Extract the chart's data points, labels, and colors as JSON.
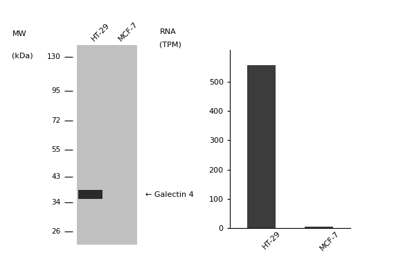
{
  "mw_labels": [
    "130",
    "95",
    "72",
    "55",
    "43",
    "34",
    "26"
  ],
  "mw_values": [
    130,
    95,
    72,
    55,
    43,
    34,
    26
  ],
  "cell_lines": [
    "HT-29",
    "MCF-7"
  ],
  "band_kda": 36.5,
  "band_annotation": "← Galectin 4",
  "gel_color": "#c0c0c0",
  "band_color": "#2a2a2a",
  "bar_values": [
    557,
    4
  ],
  "bar_color": "#3c3c3c",
  "ylabel_bar_line1": "RNA",
  "ylabel_bar_line2": "(TPM)",
  "yticks_bar": [
    0,
    100,
    200,
    300,
    400,
    500
  ],
  "ylim_bar": [
    0,
    610
  ],
  "background_color": "#ffffff",
  "mw_ylabel_line1": "MW",
  "mw_ylabel_line2": "(kDa)",
  "label_color": "#555555"
}
